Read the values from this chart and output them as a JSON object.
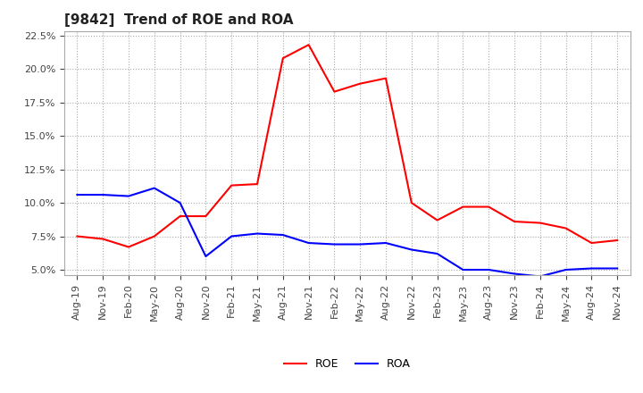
{
  "title": "[9842]  Trend of ROE and ROA",
  "roe_data": [
    [
      "Aug-19",
      7.5
    ],
    [
      "Nov-19",
      7.3
    ],
    [
      "Feb-20",
      6.7
    ],
    [
      "May-20",
      7.5
    ],
    [
      "Aug-20",
      9.0
    ],
    [
      "Nov-20",
      9.0
    ],
    [
      "Feb-21",
      11.3
    ],
    [
      "May-21",
      11.4
    ],
    [
      "Aug-21",
      20.8
    ],
    [
      "Nov-21",
      21.8
    ],
    [
      "Feb-22",
      18.3
    ],
    [
      "May-22",
      18.9
    ],
    [
      "Aug-22",
      19.3
    ],
    [
      "Nov-22",
      10.0
    ],
    [
      "Feb-23",
      8.7
    ],
    [
      "May-23",
      9.7
    ],
    [
      "Aug-23",
      9.7
    ],
    [
      "Nov-23",
      8.6
    ],
    [
      "Feb-24",
      8.5
    ],
    [
      "May-24",
      8.1
    ],
    [
      "Aug-24",
      7.0
    ],
    [
      "Nov-24",
      7.2
    ]
  ],
  "roa_data": [
    [
      "Aug-19",
      10.6
    ],
    [
      "Nov-19",
      10.6
    ],
    [
      "Feb-20",
      10.5
    ],
    [
      "May-20",
      11.1
    ],
    [
      "Aug-20",
      10.0
    ],
    [
      "Nov-20",
      6.0
    ],
    [
      "Feb-21",
      7.5
    ],
    [
      "May-21",
      7.7
    ],
    [
      "Aug-21",
      7.6
    ],
    [
      "Nov-21",
      7.0
    ],
    [
      "Feb-22",
      6.9
    ],
    [
      "May-22",
      6.9
    ],
    [
      "Aug-22",
      7.0
    ],
    [
      "Nov-22",
      6.5
    ],
    [
      "Feb-23",
      6.2
    ],
    [
      "May-23",
      5.0
    ],
    [
      "Aug-23",
      5.0
    ],
    [
      "Nov-23",
      4.7
    ],
    [
      "Feb-24",
      4.5
    ],
    [
      "May-24",
      5.0
    ],
    [
      "Aug-24",
      5.1
    ],
    [
      "Nov-24",
      5.1
    ]
  ],
  "roe_color": "#ff0000",
  "roa_color": "#0000ff",
  "background_color": "#ffffff",
  "grid_color": "#aaaaaa",
  "ylim_min": 4.6,
  "ylim_max": 22.8,
  "yticks": [
    5.0,
    7.5,
    10.0,
    12.5,
    15.0,
    17.5,
    20.0,
    22.5
  ],
  "title_fontsize": 11,
  "tick_fontsize": 8,
  "legend_fontsize": 9
}
